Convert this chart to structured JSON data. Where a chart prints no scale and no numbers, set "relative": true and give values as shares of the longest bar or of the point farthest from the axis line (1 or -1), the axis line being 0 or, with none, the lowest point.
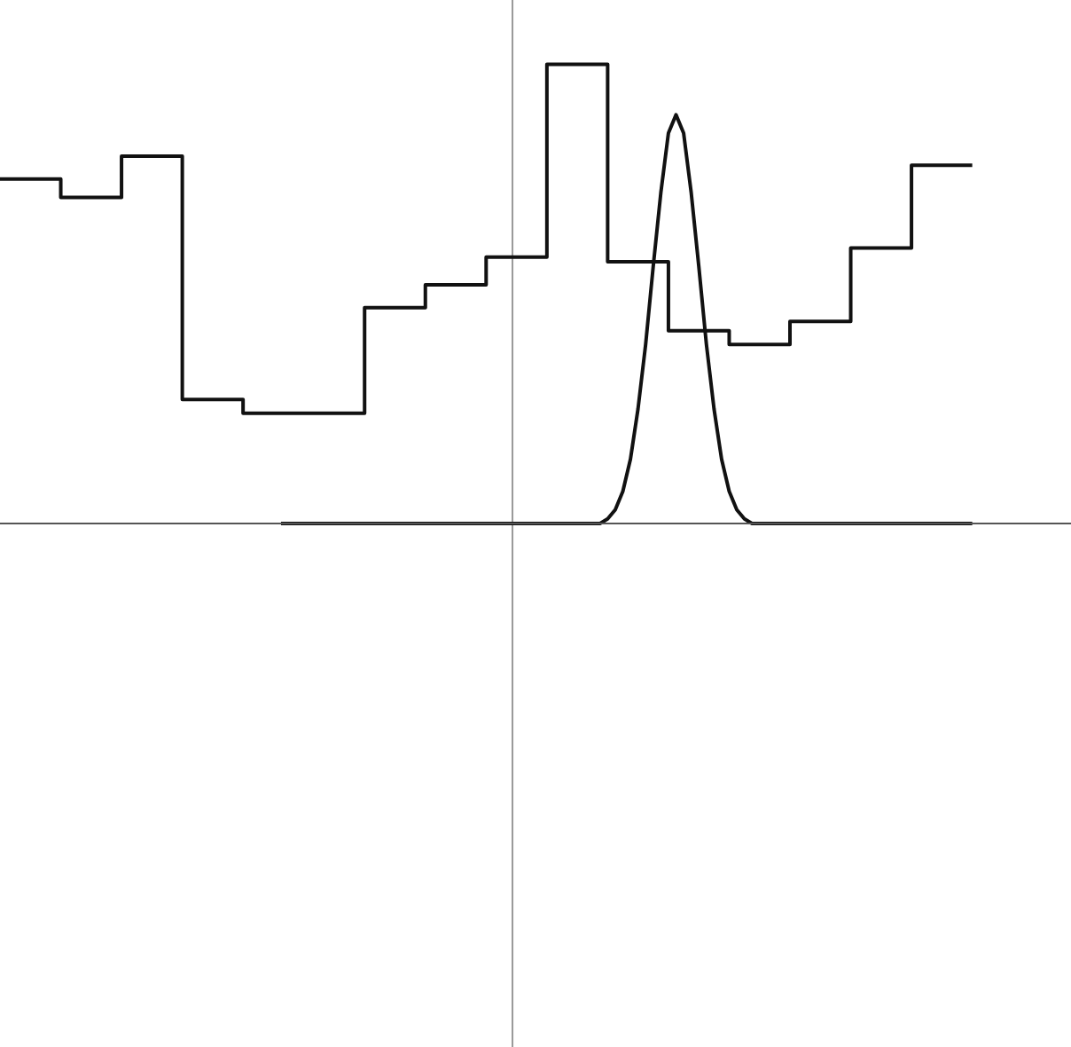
{
  "chart_data": {
    "type": "step",
    "relative": true,
    "categories": [
      null,
      null,
      null,
      null,
      null,
      null,
      null,
      null,
      null,
      null,
      null,
      null,
      null,
      null,
      null,
      null,
      null,
      null,
      null,
      null,
      null,
      null,
      null,
      null,
      null,
      null,
      null,
      null,
      null,
      null,
      null,
      null,
      null,
      null,
      null,
      null,
      null,
      null,
      null,
      null,
      null,
      null,
      null,
      null,
      null,
      null,
      null,
      null,
      null,
      null,
      null,
      null,
      null,
      null,
      null,
      null,
      null,
      null,
      null,
      null,
      null,
      null,
      null,
      null,
      null,
      null,
      null,
      null,
      null,
      null,
      null,
      null,
      null,
      null,
      null,
      null,
      null,
      null,
      null,
      null,
      null,
      null,
      null,
      null,
      null,
      null,
      null,
      null,
      null,
      null,
      null,
      null,
      null,
      null,
      null,
      null,
      null,
      null,
      null,
      null,
      null,
      null,
      null,
      null,
      null,
      null,
      null,
      null,
      null,
      null,
      null,
      null,
      null,
      null,
      null,
      null,
      null,
      null,
      null,
      null,
      null,
      null,
      null,
      null,
      null,
      null,
      null,
      null,
      null,
      null,
      null,
      null,
      null,
      null,
      null,
      null,
      null,
      null,
      null,
      null,
      null,
      null
    ],
    "series": [
      {
        "color": "#111111",
        "values": [
          0.75,
          0.75,
          0.75,
          0.75,
          0.75,
          0.75,
          0.75,
          0.75,
          0.71,
          0.71,
          0.71,
          0.71,
          0.71,
          0.71,
          0.71,
          0.71,
          0.8,
          0.8,
          0.8,
          0.8,
          0.8,
          0.8,
          0.8,
          0.8,
          0.27,
          0.27,
          0.27,
          0.27,
          0.27,
          0.27,
          0.27,
          0.27,
          0.24,
          0.24,
          0.24,
          0.24,
          0.24,
          0.24,
          0.24,
          0.24,
          0.24,
          0.24,
          0.24,
          0.24,
          0.24,
          0.24,
          0.24,
          0.24,
          0.47,
          0.47,
          0.47,
          0.47,
          0.47,
          0.47,
          0.47,
          0.47,
          0.52,
          0.52,
          0.52,
          0.52,
          0.52,
          0.52,
          0.52,
          0.52,
          0.58,
          0.58,
          0.58,
          0.58,
          0.58,
          0.58,
          0.58,
          0.58,
          1,
          1,
          1,
          1,
          1,
          1,
          1,
          1,
          0.57,
          0.57,
          0.57,
          0.57,
          0.57,
          0.57,
          0.57,
          0.57,
          0.42,
          0.42,
          0.42,
          0.42,
          0.42,
          0.42,
          0.42,
          0.42,
          0.39,
          0.39,
          0.39,
          0.39,
          0.39,
          0.39,
          0.39,
          0.39,
          0.44,
          0.44,
          0.44,
          0.44,
          0.44,
          0.44,
          0.44,
          0.44,
          0.6,
          0.6,
          0.6,
          0.6,
          0.6,
          0.6,
          0.6,
          0.6,
          0.78,
          0.78,
          0.78,
          0.78,
          0.78,
          0.78,
          0.78,
          0.78,
          0.78,
          null,
          null,
          null,
          null,
          null,
          null,
          null,
          null,
          null,
          null,
          null,
          null,
          null
        ]
      },
      {
        "type": "line",
        "color": "#111111",
        "values": [
          null,
          null,
          null,
          null,
          null,
          null,
          null,
          null,
          null,
          null,
          null,
          null,
          null,
          null,
          null,
          null,
          null,
          null,
          null,
          null,
          null,
          null,
          null,
          null,
          null,
          null,
          null,
          null,
          null,
          null,
          null,
          null,
          null,
          null,
          null,
          null,
          null,
          0,
          0,
          0,
          0,
          0,
          0,
          0,
          0,
          0,
          0,
          0,
          0,
          0,
          0,
          0,
          0,
          0,
          0,
          0,
          0,
          0,
          0,
          0,
          0,
          0,
          0,
          0,
          0,
          0,
          0,
          0,
          0,
          0,
          0,
          0,
          0,
          0,
          0,
          0,
          0,
          0,
          0,
          0,
          0.01,
          0.03,
          0.07,
          0.14,
          0.25,
          0.39,
          0.56,
          0.72,
          0.85,
          0.89,
          0.85,
          0.72,
          0.56,
          0.39,
          0.25,
          0.14,
          0.07,
          0.03,
          0.01,
          0,
          0,
          0,
          0,
          0,
          0,
          0,
          0,
          0,
          0,
          0,
          0,
          0,
          0,
          0,
          0,
          0,
          0,
          0,
          0,
          0,
          0,
          0,
          0,
          0,
          0,
          0,
          0,
          0,
          0,
          null,
          null,
          null,
          null,
          null,
          null,
          null,
          null,
          null,
          null,
          null,
          null,
          null
        ]
      }
    ]
  }
}
